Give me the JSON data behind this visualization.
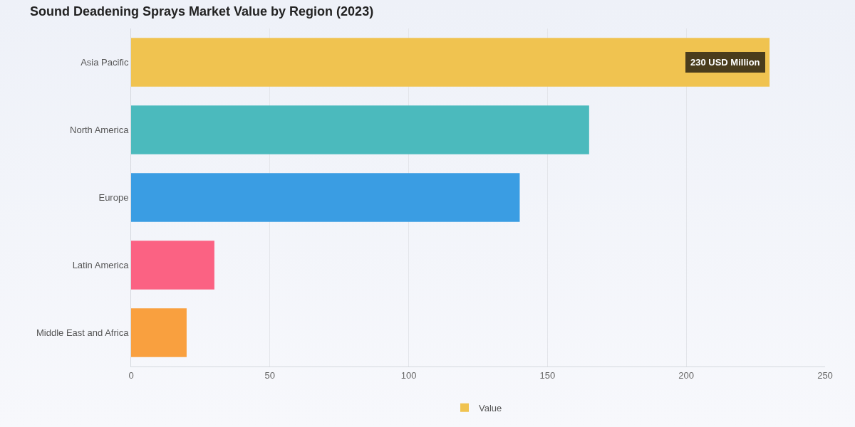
{
  "chart_data": {
    "type": "bar",
    "orientation": "horizontal",
    "title": "Sound Deadening Sprays Market Value by Region (2023)",
    "categories": [
      "Asia Pacific",
      "North America",
      "Europe",
      "Latin America",
      "Middle East and Africa"
    ],
    "series": [
      {
        "name": "Value",
        "colors": [
          "#f0c350",
          "#4bbabd",
          "#3a9de3",
          "#fb6283",
          "#f9a03f"
        ],
        "values": [
          230,
          165,
          140,
          30,
          20
        ]
      }
    ],
    "xlim": [
      0,
      250
    ],
    "xticks": [
      0,
      50,
      100,
      150,
      200,
      250
    ],
    "grid": "x",
    "legend": "bottom",
    "annotations": [
      {
        "text": "230 USD Million",
        "x": 230,
        "y": "Asia Pacific"
      }
    ]
  }
}
